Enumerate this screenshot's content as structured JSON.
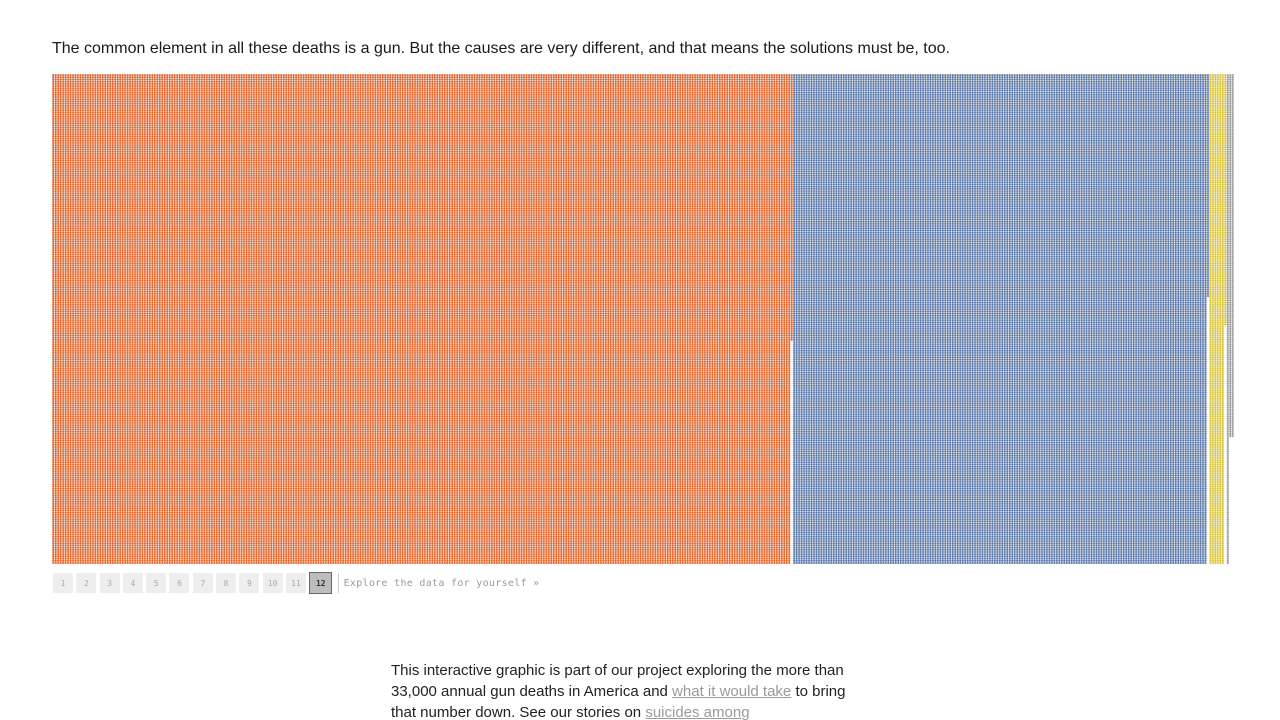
{
  "lede": "The common element in all these deaths is a gun. But the causes are very different, and that means the solutions must be, too.",
  "chart_data": {
    "type": "waffle",
    "total_deaths": 33000,
    "segments": [
      {
        "color": "#e0632a",
        "columns": [
          {
            "rows": 224,
            "count": 298
          },
          {
            "rows": 122,
            "count": 1
          }
        ]
      },
      {
        "color": "#5b77a6",
        "columns": [
          {
            "rows": 224,
            "count": 167
          },
          {
            "rows": 102,
            "count": 1
          }
        ]
      },
      {
        "color": "#d8c43c",
        "columns": [
          {
            "rows": 224,
            "count": 6
          },
          {
            "rows": 115,
            "count": 1
          }
        ]
      },
      {
        "color": "#9c9c9c",
        "columns": [
          {
            "rows": 224,
            "count": 1
          },
          {
            "rows": 166,
            "count": 2
          }
        ]
      }
    ],
    "grid": {
      "rows": 224,
      "dot_radius": 1.15,
      "background": "#ffffff"
    }
  },
  "pager": {
    "pages": [
      "1",
      "2",
      "3",
      "4",
      "5",
      "6",
      "7",
      "8",
      "9",
      "10",
      "11",
      "12"
    ],
    "active_index": 11,
    "explore_label": "Explore the data for yourself »"
  },
  "footer": {
    "text_1": "This interactive graphic is part of our project exploring the more than 33,000 annual gun deaths in America and ",
    "link_1": "what it would take",
    "text_2": " to bring that number down. See our stories on ",
    "link_2": "suicides among"
  }
}
